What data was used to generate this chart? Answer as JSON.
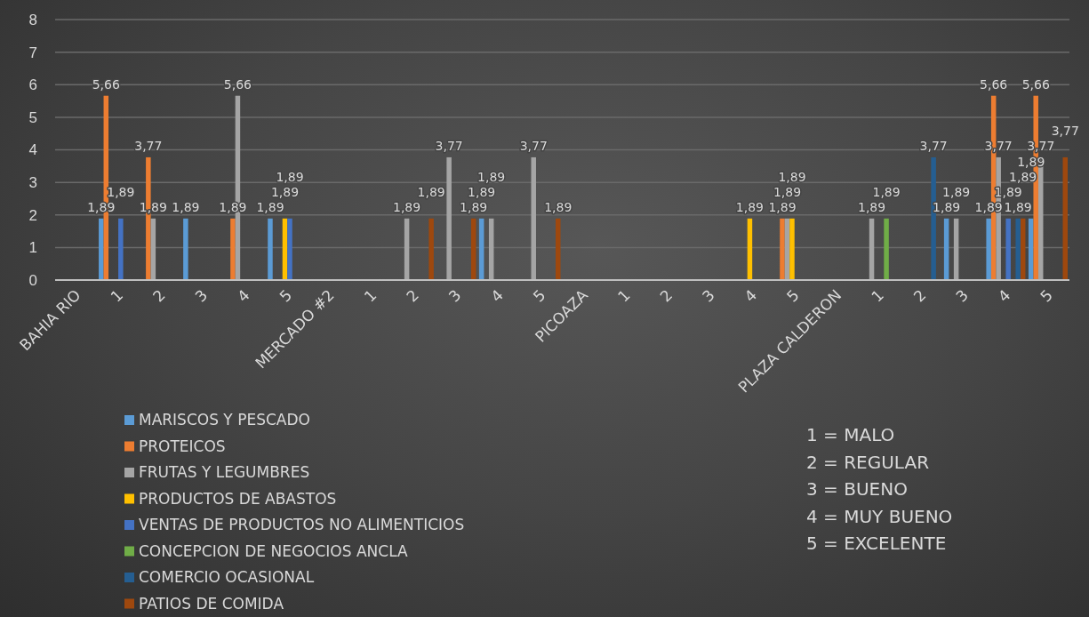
{
  "chart_data": {
    "type": "bar",
    "categories": [
      "BAHIA RIO",
      "1",
      "2",
      "3",
      "4",
      "5",
      "MERCADO #2",
      "1",
      "2",
      "3",
      "4",
      "5",
      "PICOAZA",
      "1",
      "2",
      "3",
      "4",
      "5",
      "PLAZA CALDERON",
      "1",
      "2",
      "3",
      "4",
      "5"
    ],
    "series": [
      {
        "name": "MARISCOS Y PESCADO",
        "color": "#5b9bd5",
        "values": [
          null,
          1.89,
          null,
          1.89,
          null,
          1.89,
          null,
          null,
          null,
          null,
          1.89,
          null,
          null,
          null,
          null,
          null,
          null,
          null,
          null,
          null,
          null,
          1.89,
          1.89,
          1.89
        ]
      },
      {
        "name": "PROTEICOS",
        "color": "#ed7d31",
        "values": [
          null,
          5.66,
          3.77,
          null,
          1.89,
          null,
          null,
          null,
          null,
          null,
          null,
          null,
          null,
          null,
          null,
          null,
          null,
          1.89,
          null,
          null,
          null,
          null,
          5.66,
          5.66
        ]
      },
      {
        "name": "FRUTAS Y LEGUMBRES",
        "color": "#a5a5a5",
        "values": [
          null,
          null,
          1.89,
          null,
          5.66,
          null,
          null,
          null,
          1.89,
          3.77,
          1.89,
          3.77,
          null,
          null,
          null,
          null,
          null,
          1.89,
          null,
          1.89,
          null,
          1.89,
          3.77,
          3.77
        ]
      },
      {
        "name": "PRODUCTOS DE ABASTOS",
        "color": "#ffc000",
        "values": [
          null,
          null,
          null,
          null,
          null,
          1.89,
          null,
          null,
          null,
          null,
          null,
          null,
          null,
          null,
          null,
          null,
          1.89,
          1.89,
          null,
          null,
          null,
          null,
          null,
          null
        ]
      },
      {
        "name": "VENTAS DE PRODUCTOS NO ALIMENTICIOS",
        "color": "#4472c4",
        "values": [
          null,
          1.89,
          null,
          null,
          null,
          1.89,
          null,
          null,
          null,
          null,
          null,
          null,
          null,
          null,
          null,
          null,
          null,
          null,
          null,
          null,
          null,
          null,
          1.89,
          null
        ]
      },
      {
        "name": "CONCEPCION DE NEGOCIOS ANCLA",
        "color": "#70ad47",
        "values": [
          null,
          null,
          null,
          null,
          null,
          null,
          null,
          null,
          null,
          null,
          null,
          null,
          null,
          null,
          null,
          null,
          null,
          null,
          null,
          1.89,
          null,
          null,
          null,
          null
        ]
      },
      {
        "name": "COMERCIO OCASIONAL",
        "color": "#255e91",
        "values": [
          null,
          null,
          null,
          null,
          null,
          null,
          null,
          null,
          null,
          null,
          null,
          null,
          null,
          null,
          null,
          null,
          null,
          null,
          null,
          null,
          3.77,
          null,
          1.89,
          null
        ]
      },
      {
        "name": "PATIOS DE COMIDA",
        "color": "#9e480e",
        "values": [
          null,
          null,
          null,
          null,
          null,
          null,
          null,
          null,
          1.89,
          1.89,
          null,
          1.89,
          null,
          null,
          null,
          null,
          null,
          null,
          null,
          null,
          null,
          null,
          1.89,
          3.77
        ]
      }
    ],
    "ylim": [
      0,
      8
    ],
    "yticks": [
      0,
      1,
      2,
      3,
      4,
      5,
      6,
      7,
      8
    ],
    "grid": "y",
    "legend": "bottom left",
    "value_labels": [
      [
        null,
        "1,89",
        null,
        "1,89",
        null,
        "1,89",
        null,
        null,
        null,
        null,
        "1,89",
        null,
        null,
        null,
        null,
        null,
        null,
        null,
        null,
        null,
        null,
        "1,89",
        "1,89",
        "1,89"
      ],
      [
        null,
        "5,66",
        "3,77",
        null,
        "1,89",
        null,
        null,
        null,
        null,
        null,
        null,
        null,
        null,
        null,
        null,
        null,
        null,
        "1,89",
        null,
        null,
        null,
        null,
        "5,66",
        "5,66"
      ],
      [
        null,
        null,
        "1,89",
        null,
        "5,66",
        null,
        null,
        null,
        "1,89",
        "3,77",
        "1,89",
        "3,77",
        null,
        null,
        null,
        null,
        null,
        "1,89",
        null,
        "1,89",
        null,
        "1,89",
        "3,77",
        "3,77"
      ],
      [
        null,
        null,
        null,
        null,
        null,
        "1,89",
        null,
        null,
        null,
        null,
        null,
        null,
        null,
        null,
        null,
        null,
        "1,89",
        "1,89",
        null,
        null,
        null,
        null,
        null,
        null
      ],
      [
        null,
        "1,89",
        null,
        null,
        null,
        "1,89",
        null,
        null,
        null,
        null,
        null,
        null,
        null,
        null,
        null,
        null,
        null,
        null,
        null,
        null,
        null,
        null,
        "1,89",
        null
      ],
      [
        null,
        null,
        null,
        null,
        null,
        null,
        null,
        null,
        null,
        null,
        null,
        null,
        null,
        null,
        null,
        null,
        null,
        null,
        null,
        "1,89",
        null,
        null,
        null,
        null
      ],
      [
        null,
        null,
        null,
        null,
        null,
        null,
        null,
        null,
        null,
        null,
        null,
        null,
        null,
        null,
        null,
        null,
        null,
        null,
        null,
        null,
        "3,77",
        null,
        "1,89",
        null
      ],
      [
        null,
        null,
        null,
        null,
        null,
        null,
        null,
        null,
        "1,89",
        "1,89",
        null,
        "1,89",
        null,
        null,
        null,
        null,
        null,
        null,
        null,
        null,
        null,
        null,
        "1,89",
        "3,77"
      ]
    ],
    "annotations": [
      "1 = MALO",
      "2 = REGULAR",
      "3 = BUENO",
      "4 = MUY BUENO",
      "5 = EXCELENTE"
    ]
  }
}
